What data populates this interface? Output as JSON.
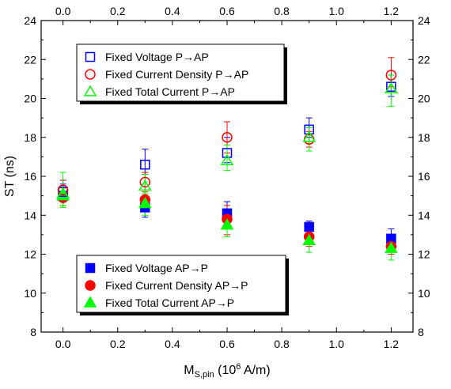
{
  "chart_data": {
    "type": "scatter",
    "ylabel": "ST (ns)",
    "xlabel_main": "M",
    "xlabel_sub": "S,pin",
    "xlabel_open": " (10",
    "xlabel_sup": "6",
    "xlabel_unit": " A/m)",
    "xlim": [
      -0.08,
      1.28
    ],
    "ylim": [
      8,
      24
    ],
    "x_ticks": [
      0.0,
      0.2,
      0.4,
      0.6,
      0.8,
      1.0,
      1.2
    ],
    "x_tick_labels": [
      "0.0",
      "0.2",
      "0.4",
      "0.6",
      "0.8",
      "1.0",
      "1.2"
    ],
    "y_ticks": [
      8,
      10,
      12,
      14,
      16,
      18,
      20,
      22,
      24
    ],
    "y_tick_labels": [
      "8",
      "10",
      "12",
      "14",
      "16",
      "18",
      "20",
      "22",
      "24"
    ],
    "grid": false,
    "mirrored_axes": true,
    "legends": [
      {
        "placement": "top-left",
        "entries": [
          "Fixed Voltage P→AP",
          "Fixed Current Density P→AP",
          "Fixed Total Current P→AP"
        ]
      },
      {
        "placement": "bottom-left",
        "entries": [
          "Fixed Voltage AP→P",
          "Fixed Current Density AP→P",
          "Fixed Total Current AP→P"
        ]
      }
    ],
    "x": [
      0.0,
      0.3,
      0.6,
      0.9,
      1.2
    ],
    "series": [
      {
        "name": "Fixed Voltage P→AP",
        "marker": "square",
        "filled": false,
        "color": "#0000FF",
        "values": [
          15.2,
          16.6,
          17.2,
          18.4,
          20.6
        ],
        "error_plus": [
          0.6,
          0.8,
          0.8,
          0.6,
          0.6
        ],
        "error_minus": [
          0.5,
          0.5,
          0.5,
          0.4,
          0.5
        ]
      },
      {
        "name": "Fixed Current Density P→AP",
        "marker": "circle",
        "filled": false,
        "color": "#FF0000",
        "values": [
          15.3,
          15.7,
          18.0,
          17.9,
          21.2
        ],
        "error_plus": [
          0.5,
          0.5,
          0.8,
          0.4,
          0.9
        ],
        "error_minus": [
          0.6,
          0.4,
          0.8,
          0.4,
          0.6
        ]
      },
      {
        "name": "Fixed Total Current P→AP",
        "marker": "triangle",
        "filled": false,
        "color": "#00FF00",
        "values": [
          15.1,
          15.5,
          16.8,
          18.0,
          20.5
        ],
        "error_plus": [
          1.1,
          0.6,
          0.8,
          0.5,
          0.7
        ],
        "error_minus": [
          0.7,
          0.5,
          0.5,
          0.7,
          0.9
        ]
      },
      {
        "name": "Fixed Voltage AP→P",
        "marker": "square",
        "filled": true,
        "color": "#0000FF",
        "values": [
          15.0,
          14.4,
          14.1,
          13.4,
          12.8
        ],
        "error_plus": [
          0.6,
          0.4,
          0.6,
          0.3,
          0.5
        ],
        "error_minus": [
          0.5,
          0.5,
          0.6,
          0.2,
          0.3
        ]
      },
      {
        "name": "Fixed Current Density AP→P",
        "marker": "circle",
        "filled": true,
        "color": "#FF0000",
        "values": [
          14.9,
          14.8,
          13.8,
          12.9,
          12.4
        ],
        "error_plus": [
          0.5,
          0.4,
          0.7,
          0.5,
          0.5
        ],
        "error_minus": [
          0.5,
          0.4,
          0.8,
          0.5,
          0.4
        ]
      },
      {
        "name": "Fixed Total Current AP→P",
        "marker": "triangle",
        "filled": true,
        "color": "#00FF00",
        "values": [
          15.0,
          14.6,
          13.5,
          12.7,
          12.3
        ],
        "error_plus": [
          0.5,
          0.5,
          0.6,
          0.5,
          0.5
        ],
        "error_minus": [
          0.5,
          0.6,
          0.6,
          0.6,
          0.6
        ]
      }
    ]
  }
}
